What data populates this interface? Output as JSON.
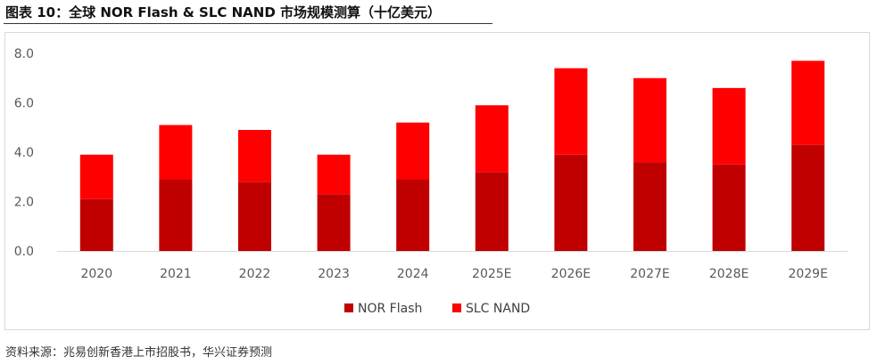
{
  "header": {
    "title": "图表 10：全球 NOR Flash  & SLC NAND  市场规模测算（十亿美元）"
  },
  "footer": {
    "source": "资料来源：兆易创新香港上市招股书，华兴证券预测"
  },
  "colors": {
    "nor_flash": "#c00000",
    "slc_nand": "#ff0000",
    "axis_text": "#595959",
    "grid": "#d9d9d9"
  },
  "chart_data": {
    "type": "bar",
    "stacked": true,
    "categories": [
      "2020",
      "2021",
      "2022",
      "2023",
      "2024",
      "2025E",
      "2026E",
      "2027E",
      "2028E",
      "2029E"
    ],
    "series": [
      {
        "name": "NOR Flash",
        "values": [
          2.1,
          2.9,
          2.8,
          2.3,
          2.9,
          3.2,
          3.9,
          3.6,
          3.5,
          4.3
        ]
      },
      {
        "name": "SLC NAND",
        "values": [
          1.8,
          2.2,
          2.1,
          1.6,
          2.3,
          2.7,
          3.5,
          3.4,
          3.1,
          3.4
        ]
      }
    ],
    "ylim": [
      0,
      8
    ],
    "yticks": [
      "0.0",
      "2.0",
      "4.0",
      "6.0",
      "8.0"
    ],
    "grid": false,
    "legend_position": "bottom-center"
  }
}
